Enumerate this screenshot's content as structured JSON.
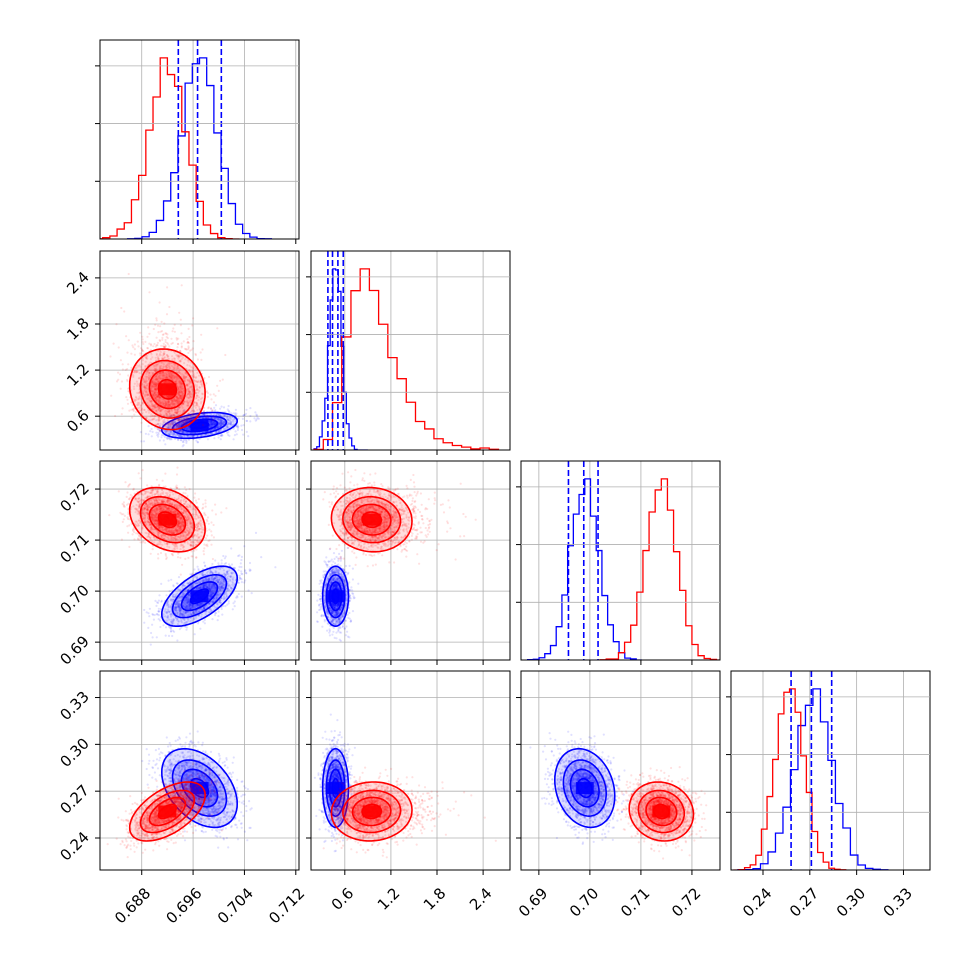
{
  "chart_data": {
    "type": "corner",
    "grid": true,
    "series": [
      {
        "name": "",
        "color": "#0000ff",
        "means": [
          0.697,
          0.48,
          0.699,
          0.272
        ],
        "stds": [
          0.0028,
          0.08,
          0.0028,
          0.012
        ],
        "rho": {
          "0-1": 0.35,
          "0-2": 0.6,
          "0-3": -0.4,
          "1-2": 0.0,
          "1-3": 0.0,
          "2-3": -0.2
        },
        "quantiles_shown": true
      },
      {
        "name": "",
        "color": "#ff0000",
        "means": [
          0.692,
          0.95,
          0.714,
          0.257
        ],
        "stds": [
          0.0028,
          0.28,
          0.003,
          0.009
        ],
        "rho": {
          "0-1": -0.1,
          "0-2": -0.3,
          "0-3": 0.55,
          "1-2": -0.05,
          "1-3": 0.05,
          "2-3": -0.1
        },
        "quantiles_shown": false
      }
    ],
    "quantile_lines": [
      [
        0.6937,
        0.6967,
        0.7004
      ],
      [
        0.38,
        0.44,
        0.51,
        0.58
      ],
      [
        0.6958,
        0.6988,
        0.7016
      ],
      [
        0.258,
        0.271,
        0.284
      ]
    ],
    "params": [
      {
        "range": [
          0.6815,
          0.7125
        ],
        "ticks": [
          0.688,
          0.696,
          0.704,
          0.712
        ],
        "tick_labels": [
          "0.688",
          "0.696",
          "0.704",
          "0.712"
        ]
      },
      {
        "range": [
          0.16,
          2.75
        ],
        "ticks": [
          0.6,
          1.2,
          1.8,
          2.4
        ],
        "tick_labels": [
          "0.6",
          "1.2",
          "1.8",
          "2.4"
        ]
      },
      {
        "range": [
          0.6865,
          0.7255
        ],
        "ticks": [
          0.69,
          0.7,
          0.71,
          0.72
        ],
        "tick_labels": [
          "0.69",
          "0.70",
          "0.71",
          "0.72"
        ]
      },
      {
        "range": [
          0.2195,
          0.347
        ],
        "ticks": [
          0.24,
          0.27,
          0.3,
          0.33
        ],
        "tick_labels": [
          "0.24",
          "0.27",
          "0.30",
          "0.33"
        ]
      }
    ]
  }
}
